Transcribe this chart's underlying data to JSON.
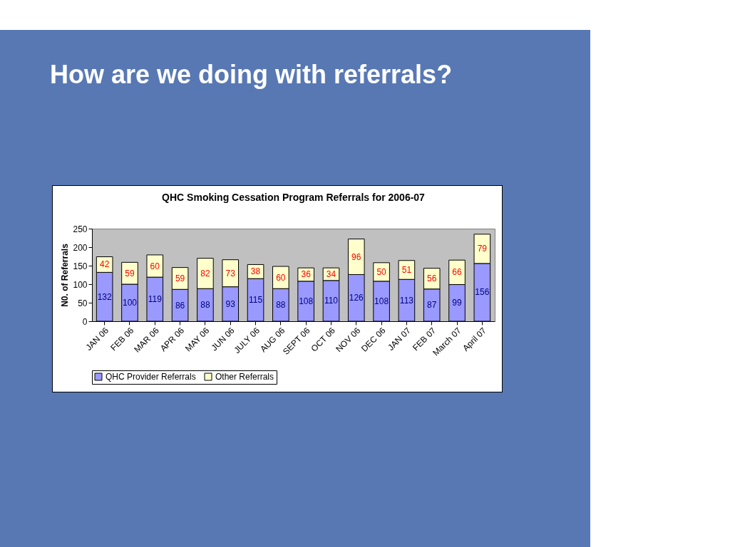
{
  "chart_data": {
    "type": "bar",
    "title": "How are we doing with referrals?",
    "subtitle": "QHC Smoking Cessation Program Referrals for 2006-07",
    "ylabel": "N0. of Referrals",
    "categories": [
      "JAN 06",
      "FEB 06",
      "MAR 06",
      "APR 06",
      "MAY 06",
      "JUN 06",
      "JULY 06",
      "AUG 06",
      "SEPT 06",
      "OCT 06",
      "NOV 06",
      "DEC 06",
      "JAN 07",
      "FEB 07",
      "March 07",
      "April 07"
    ],
    "series": [
      {
        "name": "QHC Provider Referrals",
        "color": "#9999ff",
        "values": [
          132,
          100,
          119,
          86,
          88,
          93,
          115,
          88,
          108,
          110,
          126,
          108,
          113,
          87,
          99,
          156
        ]
      },
      {
        "name": "Other Referrals",
        "color": "#ffffcc",
        "values": [
          42,
          59,
          60,
          59,
          82,
          73,
          38,
          60,
          36,
          34,
          96,
          50,
          51,
          56,
          66,
          79
        ]
      }
    ],
    "stacked": true,
    "ylim": [
      0,
      250
    ],
    "yticks": [
      0,
      50,
      100,
      150,
      200,
      250
    ],
    "grid": false,
    "legend": "bottom",
    "data_labels": true
  }
}
